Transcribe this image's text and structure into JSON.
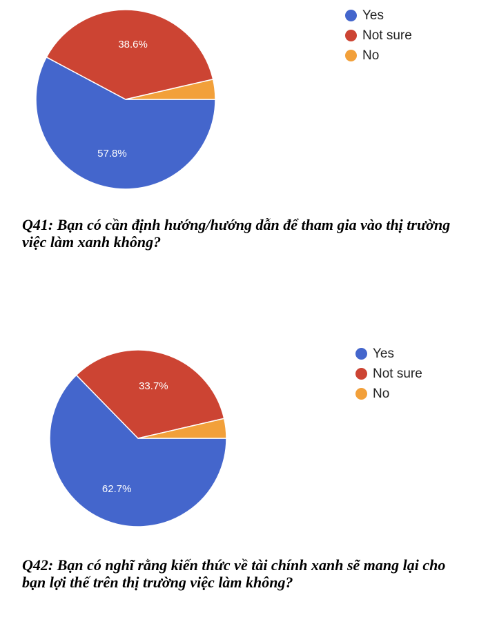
{
  "chart_data": [
    {
      "type": "pie",
      "legend_position": "right",
      "labels": [
        "Yes",
        "Not sure",
        "No"
      ],
      "values": [
        57.8,
        38.6,
        3.6
      ],
      "data_labels": [
        "57.8%",
        "38.6%",
        ""
      ],
      "colors": [
        "#4466cc",
        "#cc4433",
        "#f2a03a"
      ],
      "caption": "Q41: Bạn có cần định hướng/hướng dẫn để tham gia vào thị trường việc làm xanh không?"
    },
    {
      "type": "pie",
      "legend_position": "right",
      "labels": [
        "Yes",
        "Not sure",
        "No"
      ],
      "values": [
        62.7,
        33.7,
        3.6
      ],
      "data_labels": [
        "62.7%",
        "33.7%",
        ""
      ],
      "colors": [
        "#4466cc",
        "#cc4433",
        "#f2a03a"
      ],
      "caption": "Q42: Bạn có nghĩ rằng kiến thức về tài chính xanh sẽ mang lại cho bạn lợi thế trên thị trường việc làm không?"
    }
  ]
}
